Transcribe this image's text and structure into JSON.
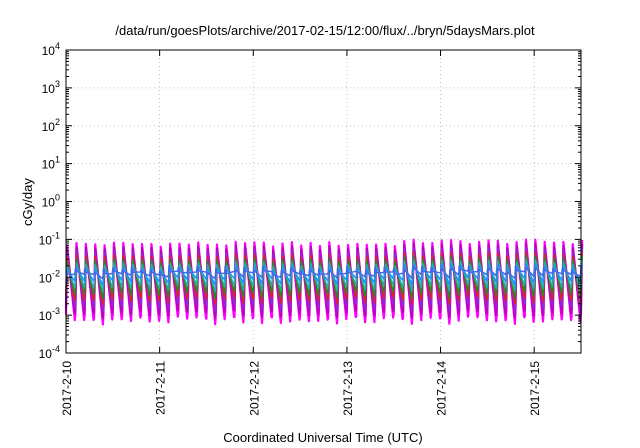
{
  "chart_data": {
    "type": "line",
    "title": "/data/run/goesPlots/archive/2017-02-15/12:00/flux/../bryn/5daysMars.plot",
    "xlabel": "Coordinated Universal Time (UTC)",
    "ylabel": "cGy/day",
    "yscale": "log",
    "ylim": [
      0.0001,
      10000
    ],
    "xlim": [
      0,
      5.5
    ],
    "grid": true,
    "legend": "none",
    "y_ticks": [
      {
        "value": 0.0001,
        "base": "10",
        "exp": "-4"
      },
      {
        "value": 0.001,
        "base": "10",
        "exp": "-3"
      },
      {
        "value": 0.01,
        "base": "10",
        "exp": "-2"
      },
      {
        "value": 0.1,
        "base": "10",
        "exp": "-1"
      },
      {
        "value": 1,
        "base": "10",
        "exp": "0"
      },
      {
        "value": 10,
        "base": "10",
        "exp": "1"
      },
      {
        "value": 100,
        "base": "10",
        "exp": "2"
      },
      {
        "value": 1000,
        "base": "10",
        "exp": "3"
      },
      {
        "value": 10000,
        "base": "10",
        "exp": "4"
      }
    ],
    "x_ticks": [
      {
        "value": 0,
        "label": "2017-2-10"
      },
      {
        "value": 1,
        "label": "2017-2-11"
      },
      {
        "value": 2,
        "label": "2017-2-12"
      },
      {
        "value": 3,
        "label": "2017-2-13"
      },
      {
        "value": 4,
        "label": "2017-2-14"
      },
      {
        "value": 5,
        "label": "2017-2-15"
      }
    ],
    "series_colors": [
      "#ff00ff",
      "#c000c0",
      "#8a2be2",
      "#dd2222",
      "#228b22",
      "#20b2aa",
      "#1e90ff",
      "#4169e1"
    ],
    "sawtooth": {
      "teeth_per_day": 10,
      "peak_top": [
        0.075,
        0.095
      ],
      "trough_bottom": [
        0.0007,
        0.001
      ]
    }
  }
}
